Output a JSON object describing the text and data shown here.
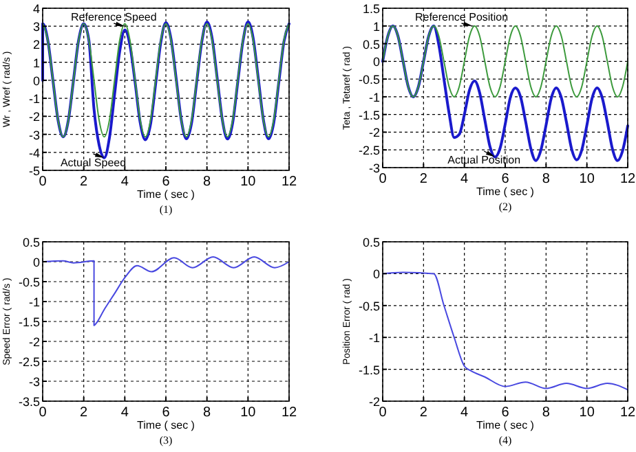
{
  "chart_data": [
    {
      "type": "line",
      "xlabel": "Time ( sec )",
      "ylabel": "Wr , Wref ( rad/s )",
      "xlim": [
        0,
        12
      ],
      "xticks": [
        0,
        2,
        4,
        6,
        8,
        10,
        12
      ],
      "ylim": [
        -5,
        4
      ],
      "yticks": [
        -5,
        -4,
        -3,
        -2,
        -1,
        0,
        1,
        2,
        3,
        4
      ],
      "grid": true,
      "x": [
        0,
        0.25,
        0.5,
        0.75,
        1,
        1.25,
        1.5,
        1.75,
        2,
        2.25,
        2.5,
        2.75,
        3,
        3.25,
        3.5,
        3.75,
        4,
        4.25,
        4.5,
        4.75,
        5,
        5.25,
        5.5,
        5.75,
        6,
        6.25,
        6.5,
        6.75,
        7,
        7.25,
        7.5,
        7.75,
        8,
        8.25,
        8.5,
        8.75,
        9,
        9.25,
        9.5,
        9.75,
        10,
        10.25,
        10.5,
        10.75,
        11,
        11.25,
        11.5,
        11.75,
        12
      ],
      "series": [
        {
          "color": "#3c9a3c",
          "values": [
            3.14,
            2.22,
            0,
            -2.22,
            -3.14,
            -2.22,
            0,
            2.22,
            3.14,
            2.22,
            0,
            -2.22,
            -3.14,
            -2.22,
            0,
            2.22,
            3.14,
            2.22,
            0,
            -2.22,
            -3.14,
            -2.22,
            0,
            2.22,
            3.14,
            2.22,
            0,
            -2.22,
            -3.14,
            -2.22,
            0,
            2.22,
            3.14,
            2.22,
            0,
            -2.22,
            -3.14,
            -2.22,
            0,
            2.22,
            3.14,
            2.22,
            0,
            -2.22,
            -3.14,
            -2.22,
            0,
            2.22,
            3.14
          ]
        },
        {
          "color": "#1a1acc",
          "x": [
            0,
            0,
            0.25,
            0.5,
            0.75,
            1,
            1.25,
            1.5,
            1.75,
            2,
            2.25,
            2.5,
            2.75,
            3,
            3.25,
            3.5,
            3.75,
            4,
            4.25,
            4.5,
            4.75,
            5,
            5.25,
            5.5,
            5.75,
            6,
            6.25,
            6.5,
            6.75,
            7,
            7.25,
            7.5,
            7.75,
            8,
            8.25,
            8.5,
            8.75,
            9,
            9.25,
            9.5,
            9.75,
            10,
            10.25,
            10.5,
            10.75,
            11,
            11.25,
            11.5,
            11.75,
            12
          ],
          "values": [
            0,
            3.14,
            2.22,
            0,
            -2.22,
            -3.14,
            -2.22,
            0,
            2.22,
            3.14,
            2.22,
            -1.6,
            -3.6,
            -4.3,
            -3.2,
            -0.8,
            1.6,
            2.8,
            1.95,
            -0.1,
            -2.35,
            -3.3,
            -2.45,
            -0.2,
            2.1,
            3.2,
            2.3,
            0.1,
            -2.2,
            -3.25,
            -2.37,
            -0.1,
            2.15,
            3.24,
            2.34,
            0.1,
            -2.2,
            -3.26,
            -2.37,
            -0.1,
            2.15,
            3.25,
            2.34,
            0.1,
            -2.2,
            -3.25,
            -2.37,
            -0.1,
            2.15,
            3.14
          ]
        }
      ],
      "annotations": [
        {
          "text": "Reference Speed",
          "x": 4,
          "y": 3
        },
        {
          "text": "Actual Speed",
          "x": 3,
          "y": -4.3
        },
        "(1)"
      ]
    },
    {
      "type": "line",
      "xlabel": "Time ( sec )",
      "ylabel": "Teta , Tetaref ( rad )",
      "xlim": [
        0,
        12
      ],
      "xticks": [
        0,
        2,
        4,
        6,
        8,
        10,
        12
      ],
      "ylim": [
        -3,
        1.5
      ],
      "yticks": [
        -3,
        -2.5,
        -2,
        -1.5,
        -1,
        -0.5,
        0,
        0.5,
        1,
        1.5
      ],
      "grid": true,
      "x": [
        0,
        0.25,
        0.5,
        0.75,
        1,
        1.25,
        1.5,
        1.75,
        2,
        2.25,
        2.5,
        2.75,
        3,
        3.25,
        3.5,
        3.75,
        4,
        4.25,
        4.5,
        4.75,
        5,
        5.25,
        5.5,
        5.75,
        6,
        6.25,
        6.5,
        6.75,
        7,
        7.25,
        7.5,
        7.75,
        8,
        8.25,
        8.5,
        8.75,
        9,
        9.25,
        9.5,
        9.75,
        10,
        10.25,
        10.5,
        10.75,
        11,
        11.25,
        11.5,
        11.75,
        12
      ],
      "series": [
        {
          "color": "#3c9a3c",
          "values": [
            0,
            0.71,
            1,
            0.71,
            0,
            -0.71,
            -1,
            -0.71,
            0,
            0.71,
            1,
            0.71,
            0,
            -0.71,
            -1,
            -0.71,
            0,
            0.71,
            1,
            0.71,
            0,
            -0.71,
            -1,
            -0.71,
            0,
            0.71,
            1,
            0.71,
            0,
            -0.71,
            -1,
            -0.71,
            0,
            0.71,
            1,
            0.71,
            0,
            -0.71,
            -1,
            -0.71,
            0,
            0.71,
            1,
            0.71,
            0,
            -0.71,
            -1,
            -0.71,
            0
          ]
        },
        {
          "color": "#1a1acc",
          "values": [
            0,
            0.71,
            1,
            0.71,
            0,
            -0.71,
            -1,
            -0.71,
            0,
            0.71,
            1,
            0.46,
            -0.5,
            -1.46,
            -2.15,
            -2.06,
            -1.5,
            -0.81,
            -0.55,
            -0.89,
            -1.65,
            -2.4,
            -2.7,
            -2.45,
            -1.77,
            -1.02,
            -0.75,
            -1,
            -1.7,
            -2.45,
            -2.8,
            -2.5,
            -1.8,
            -1.05,
            -0.75,
            -1.03,
            -1.72,
            -2.47,
            -2.78,
            -2.5,
            -1.8,
            -1.05,
            -0.75,
            -1.03,
            -1.72,
            -2.47,
            -2.8,
            -2.52,
            -1.82
          ]
        }
      ],
      "annotations": [
        {
          "text": "Reference Position",
          "x": 4.4,
          "y": 1
        },
        {
          "text": "Actual Position",
          "x": 5.5,
          "y": -2.7
        },
        "(2)"
      ]
    },
    {
      "type": "line",
      "xlabel": "Time ( sec )",
      "ylabel": "Speed Error ( rad/s )",
      "xlim": [
        0,
        12
      ],
      "xticks": [
        0,
        2,
        4,
        6,
        8,
        10,
        12
      ],
      "ylim": [
        -3.5,
        0.5
      ],
      "yticks": [
        -3.5,
        -3,
        -2.5,
        -2,
        -1.5,
        -1,
        -0.5,
        0,
        0.5
      ],
      "grid": true,
      "series": [
        {
          "color": "#4848e0",
          "x": [
            0,
            1,
            1.5,
            2.5,
            2.5,
            2.6,
            3,
            3.5,
            4,
            4.6,
            5.3,
            6.4,
            7.3,
            8.3,
            9.3,
            10.3,
            11.3,
            12
          ],
          "values": [
            0,
            0.02,
            -0.03,
            0.02,
            -1.6,
            -1.55,
            -1.2,
            -0.8,
            -0.4,
            -0.1,
            -0.25,
            0.1,
            -0.15,
            0.12,
            -0.15,
            0.12,
            -0.15,
            0
          ]
        }
      ],
      "annotations": [
        "(3)"
      ]
    },
    {
      "type": "line",
      "xlabel": "Time ( sec )",
      "ylabel": "Position Error ( rad )",
      "xlim": [
        0,
        12
      ],
      "xticks": [
        0,
        2,
        4,
        6,
        8,
        10,
        12
      ],
      "ylim": [
        -2,
        0.5
      ],
      "yticks": [
        -2,
        -1.5,
        -1,
        -0.5,
        0,
        0.5
      ],
      "grid": true,
      "series": [
        {
          "color": "#4848e0",
          "x": [
            0,
            1,
            2.5,
            3,
            3.5,
            4,
            4.3,
            5,
            6,
            7,
            8,
            9,
            10,
            11,
            12
          ],
          "values": [
            0,
            0.02,
            0,
            -0.5,
            -1,
            -1.45,
            -1.52,
            -1.62,
            -1.77,
            -1.7,
            -1.8,
            -1.72,
            -1.8,
            -1.72,
            -1.82
          ]
        }
      ],
      "annotations": [
        "(4)"
      ]
    }
  ]
}
